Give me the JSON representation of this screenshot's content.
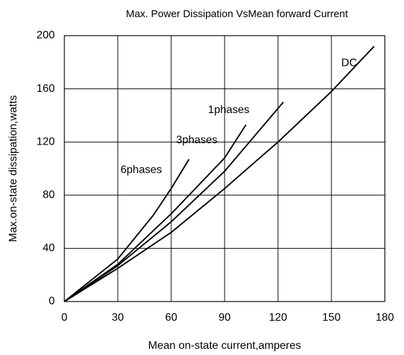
{
  "chart_data": {
    "type": "line",
    "title": "Max. Power Dissipation  VsMean forward Current",
    "xlabel": "Mean on-state current,amperes",
    "ylabel": "Max.on-state dissipation,watts",
    "xlim": [
      0,
      180
    ],
    "xticks": [
      0,
      30,
      60,
      90,
      120,
      150,
      180
    ],
    "ylim": [
      0,
      200
    ],
    "yticks": [
      0,
      40,
      80,
      120,
      160,
      200
    ],
    "grid": true,
    "series": [
      {
        "name": "DC",
        "color": "#000000",
        "x": [
          0,
          30,
          60,
          90,
          120,
          150,
          174
        ],
        "values": [
          0,
          25,
          52,
          85,
          120,
          158,
          192
        ]
      },
      {
        "name": "1phases",
        "color": "#000000",
        "x": [
          0,
          30,
          60,
          90,
          123
        ],
        "values": [
          0,
          27,
          60,
          98,
          150
        ]
      },
      {
        "name": "3phases",
        "color": "#000000",
        "x": [
          0,
          30,
          60,
          90,
          102
        ],
        "values": [
          0,
          28,
          66,
          108,
          133
        ]
      },
      {
        "name": "6phases",
        "color": "#000000",
        "x": [
          0,
          30,
          50,
          60,
          70
        ],
        "values": [
          0,
          32,
          65,
          85,
          107
        ]
      }
    ]
  }
}
